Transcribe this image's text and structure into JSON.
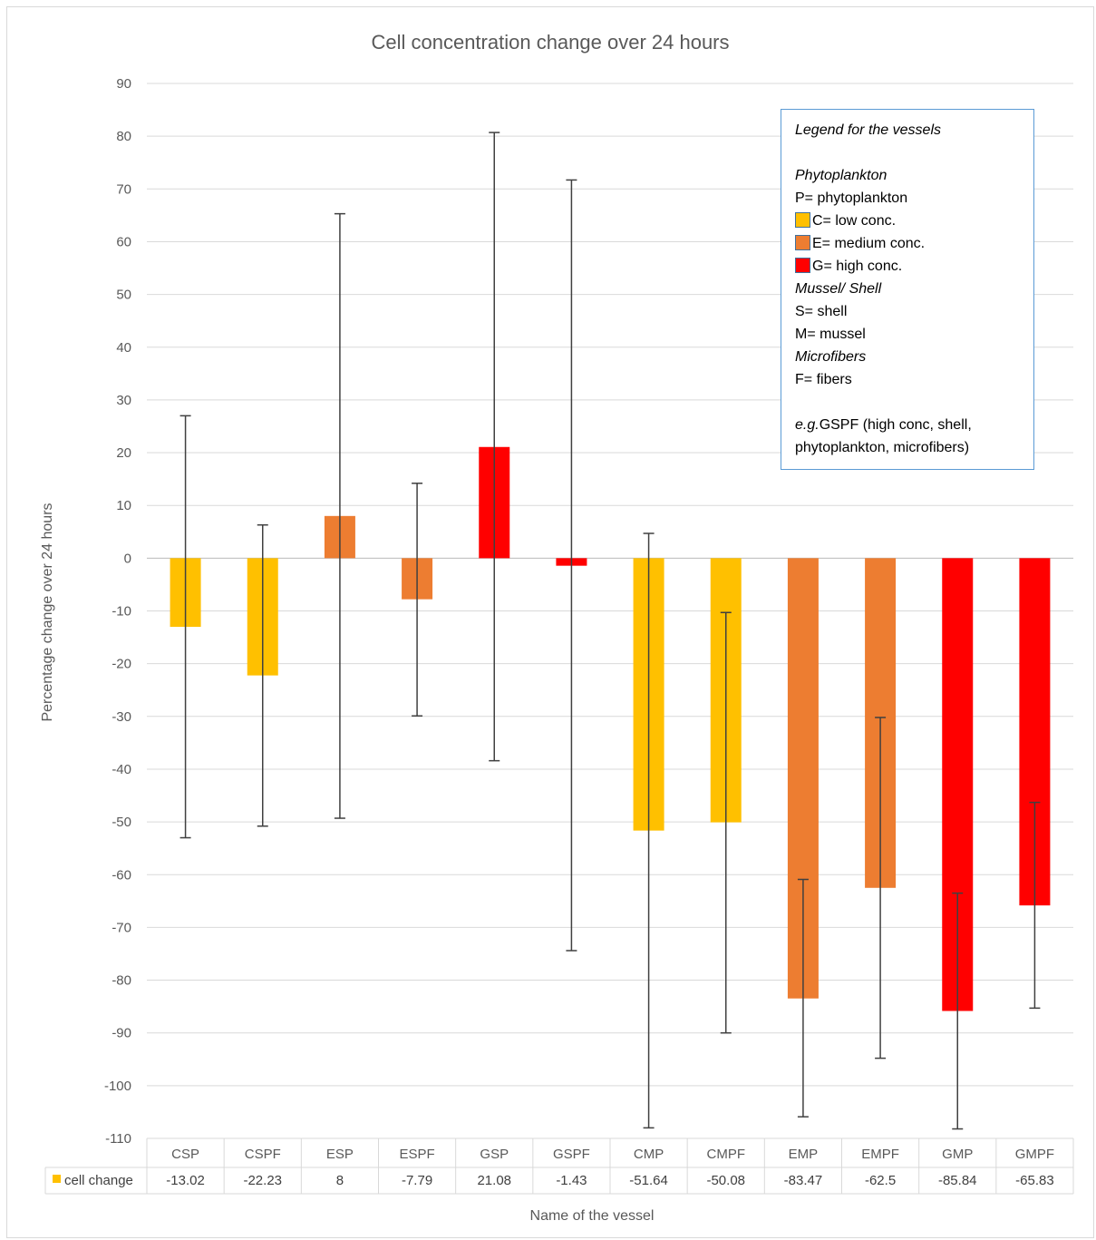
{
  "chart_data": {
    "type": "bar",
    "title": "Cell concentration change over 24 hours",
    "xlabel": "Name of the vessel",
    "ylabel": "Percentage change over 24 hours",
    "ylim": [
      -110,
      90
    ],
    "ytick_step": 10,
    "grid": true,
    "categories": [
      "CSP",
      "CSPF",
      "ESP",
      "ESPF",
      "GSP",
      "GSPF",
      "CMP",
      "CMPF",
      "EMP",
      "EMPF",
      "GMP",
      "GMPF"
    ],
    "series": [
      {
        "name": "cell change",
        "values": [
          -13.02,
          -22.23,
          8,
          -7.79,
          21.08,
          -1.43,
          -51.64,
          -50.08,
          -83.47,
          -62.5,
          -85.84,
          -65.83
        ],
        "value_labels": [
          "-13.02",
          "-22.23",
          "8",
          "-7.79",
          "21.08",
          "-1.43",
          "-51.64",
          "-50.08",
          "-83.47",
          "-62.5",
          "-85.84",
          "-65.83"
        ],
        "bar_colors": [
          "#ffc000",
          "#ffc000",
          "#ed7d31",
          "#ed7d31",
          "#ff0000",
          "#ff0000",
          "#ffc000",
          "#ffc000",
          "#ed7d31",
          "#ed7d31",
          "#ff0000",
          "#ff0000"
        ],
        "error_low": [
          -53,
          -50.8,
          -49.3,
          -29.9,
          -38.4,
          -74.4,
          -108,
          -90,
          -105.9,
          -94.8,
          -108.2,
          -85.3
        ],
        "error_high": [
          27,
          6.3,
          65.3,
          14.2,
          80.7,
          71.7,
          4.7,
          -10.3,
          -60.9,
          -30.2,
          -63.5,
          -46.3
        ]
      }
    ],
    "legend_color": "#ffc000",
    "data_table": true
  },
  "legend_box": {
    "heading": "Legend for the vessels",
    "phyto_heading": "Phytoplankton",
    "p_line": "P= phytoplankton",
    "c_line": "C= low conc.",
    "e_line": "E= medium conc.",
    "g_line": "G= high conc.",
    "c_color": "#ffc000",
    "e_color": "#ed7d31",
    "g_color": "#ff0000",
    "mussel_heading": "Mussel/ Shell",
    "s_line": "S= shell",
    "m_line": "M= mussel",
    "micro_heading": "Microfibers",
    "f_line": "F= fibers",
    "example_prefix": "e.g.",
    "example_rest": "GSPF (high conc, shell,",
    "example_line2": "phytoplankton, microfibers)"
  }
}
